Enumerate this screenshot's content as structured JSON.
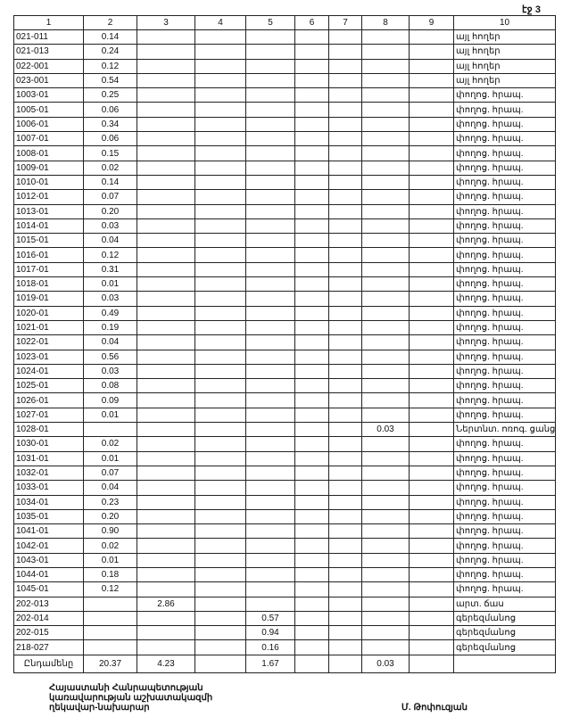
{
  "page_label": "էջ 3",
  "columns": [
    "1",
    "2",
    "3",
    "4",
    "5",
    "6",
    "7",
    "8",
    "9",
    "10"
  ],
  "rows": [
    {
      "c1": "021-011",
      "c2": "0.14",
      "c3": "",
      "c5": "",
      "c8": "",
      "c10": "այլ հողեր"
    },
    {
      "c1": "021-013",
      "c2": "0.24",
      "c3": "",
      "c5": "",
      "c8": "",
      "c10": "այլ հողեր"
    },
    {
      "c1": "022-001",
      "c2": "0.12",
      "c3": "",
      "c5": "",
      "c8": "",
      "c10": "այլ հողեր"
    },
    {
      "c1": "023-001",
      "c2": "0.54",
      "c3": "",
      "c5": "",
      "c8": "",
      "c10": "այլ հողեր"
    },
    {
      "c1": "1003-01",
      "c2": "0.25",
      "c3": "",
      "c5": "",
      "c8": "",
      "c10": "փողոց. հրապ."
    },
    {
      "c1": "1005-01",
      "c2": "0.06",
      "c3": "",
      "c5": "",
      "c8": "",
      "c10": "փողոց. հրապ."
    },
    {
      "c1": "1006-01",
      "c2": "0.34",
      "c3": "",
      "c5": "",
      "c8": "",
      "c10": "փողոց. հրապ."
    },
    {
      "c1": "1007-01",
      "c2": "0.06",
      "c3": "",
      "c5": "",
      "c8": "",
      "c10": "փողոց. հրապ."
    },
    {
      "c1": "1008-01",
      "c2": "0.15",
      "c3": "",
      "c5": "",
      "c8": "",
      "c10": "փողոց. հրապ."
    },
    {
      "c1": "1009-01",
      "c2": "0.02",
      "c3": "",
      "c5": "",
      "c8": "",
      "c10": "փողոց. հրապ."
    },
    {
      "c1": "1010-01",
      "c2": "0.14",
      "c3": "",
      "c5": "",
      "c8": "",
      "c10": "փողոց. հրապ."
    },
    {
      "c1": "1012-01",
      "c2": "0.07",
      "c3": "",
      "c5": "",
      "c8": "",
      "c10": "փողոց. հրապ."
    },
    {
      "c1": "1013-01",
      "c2": "0.20",
      "c3": "",
      "c5": "",
      "c8": "",
      "c10": "փողոց. հրապ."
    },
    {
      "c1": "1014-01",
      "c2": "0.03",
      "c3": "",
      "c5": "",
      "c8": "",
      "c10": "փողոց. հրապ."
    },
    {
      "c1": "1015-01",
      "c2": "0.04",
      "c3": "",
      "c5": "",
      "c8": "",
      "c10": "փողոց. հրապ."
    },
    {
      "c1": "1016-01",
      "c2": "0.12",
      "c3": "",
      "c5": "",
      "c8": "",
      "c10": "փողոց. հրապ."
    },
    {
      "c1": "1017-01",
      "c2": "0.31",
      "c3": "",
      "c5": "",
      "c8": "",
      "c10": "փողոց. հրապ."
    },
    {
      "c1": "1018-01",
      "c2": "0.01",
      "c3": "",
      "c5": "",
      "c8": "",
      "c10": "փողոց. հրապ."
    },
    {
      "c1": "1019-01",
      "c2": "0.03",
      "c3": "",
      "c5": "",
      "c8": "",
      "c10": "փողոց. հրապ."
    },
    {
      "c1": "1020-01",
      "c2": "0.49",
      "c3": "",
      "c5": "",
      "c8": "",
      "c10": "փողոց. հրապ."
    },
    {
      "c1": "1021-01",
      "c2": "0.19",
      "c3": "",
      "c5": "",
      "c8": "",
      "c10": "փողոց. հրապ."
    },
    {
      "c1": "1022-01",
      "c2": "0.04",
      "c3": "",
      "c5": "",
      "c8": "",
      "c10": "փողոց. հրապ."
    },
    {
      "c1": "1023-01",
      "c2": "0.56",
      "c3": "",
      "c5": "",
      "c8": "",
      "c10": "փողոց. հրապ."
    },
    {
      "c1": "1024-01",
      "c2": "0.03",
      "c3": "",
      "c5": "",
      "c8": "",
      "c10": "փողոց. հրապ."
    },
    {
      "c1": "1025-01",
      "c2": "0.08",
      "c3": "",
      "c5": "",
      "c8": "",
      "c10": "փողոց. հրապ."
    },
    {
      "c1": "1026-01",
      "c2": "0.09",
      "c3": "",
      "c5": "",
      "c8": "",
      "c10": "փողոց. հրապ."
    },
    {
      "c1": "1027-01",
      "c2": "0.01",
      "c3": "",
      "c5": "",
      "c8": "",
      "c10": "փողոց. հրապ."
    },
    {
      "c1": "1028-01",
      "c2": "",
      "c3": "",
      "c5": "",
      "c8": "0.03",
      "c10": "Ներտնտ. ոռոգ. ցանց"
    },
    {
      "c1": "1030-01",
      "c2": "0.02",
      "c3": "",
      "c5": "",
      "c8": "",
      "c10": "փողոց. հրապ."
    },
    {
      "c1": "1031-01",
      "c2": "0.01",
      "c3": "",
      "c5": "",
      "c8": "",
      "c10": "փողոց. հրապ."
    },
    {
      "c1": "1032-01",
      "c2": "0.07",
      "c3": "",
      "c5": "",
      "c8": "",
      "c10": "փողոց. հրապ."
    },
    {
      "c1": "1033-01",
      "c2": "0.04",
      "c3": "",
      "c5": "",
      "c8": "",
      "c10": "փողոց. հրապ."
    },
    {
      "c1": "1034-01",
      "c2": "0.23",
      "c3": "",
      "c5": "",
      "c8": "",
      "c10": "փողոց. հրապ."
    },
    {
      "c1": "1035-01",
      "c2": "0.20",
      "c3": "",
      "c5": "",
      "c8": "",
      "c10": "փողոց. հրապ."
    },
    {
      "c1": "1041-01",
      "c2": "0.90",
      "c3": "",
      "c5": "",
      "c8": "",
      "c10": "փողոց. հրապ."
    },
    {
      "c1": "1042-01",
      "c2": "0.02",
      "c3": "",
      "c5": "",
      "c8": "",
      "c10": "փողոց. հրապ."
    },
    {
      "c1": "1043-01",
      "c2": "0.01",
      "c3": "",
      "c5": "",
      "c8": "",
      "c10": "փողոց. հրապ."
    },
    {
      "c1": "1044-01",
      "c2": "0.18",
      "c3": "",
      "c5": "",
      "c8": "",
      "c10": "փողոց. հրապ."
    },
    {
      "c1": "1045-01",
      "c2": "0.12",
      "c3": "",
      "c5": "",
      "c8": "",
      "c10": "փողոց. հրապ."
    },
    {
      "c1": "202-013",
      "c2": "",
      "c3": "2.86",
      "c5": "",
      "c8": "",
      "c10": "արտ. ճաս"
    },
    {
      "c1": "202-014",
      "c2": "",
      "c3": "",
      "c5": "0.57",
      "c8": "",
      "c10": "գերեզմանոց"
    },
    {
      "c1": "202-015",
      "c2": "",
      "c3": "",
      "c5": "0.94",
      "c8": "",
      "c10": "գերեզմանոց"
    },
    {
      "c1": "218-027",
      "c2": "",
      "c3": "",
      "c5": "0.16",
      "c8": "",
      "c10": "գերեզմանոց"
    }
  ],
  "total": {
    "c1": "Ընդամենը",
    "c2": "20.37",
    "c3": "4.23",
    "c5": "1.67",
    "c8": "0.03",
    "c10": ""
  },
  "footer": {
    "line1": "Հայաստանի Հանրապետության",
    "line2": "կառավարության աշխատակազմի",
    "line3": "ղեկավար-նախարար",
    "signatory": "Մ. Թոփուզյան"
  }
}
